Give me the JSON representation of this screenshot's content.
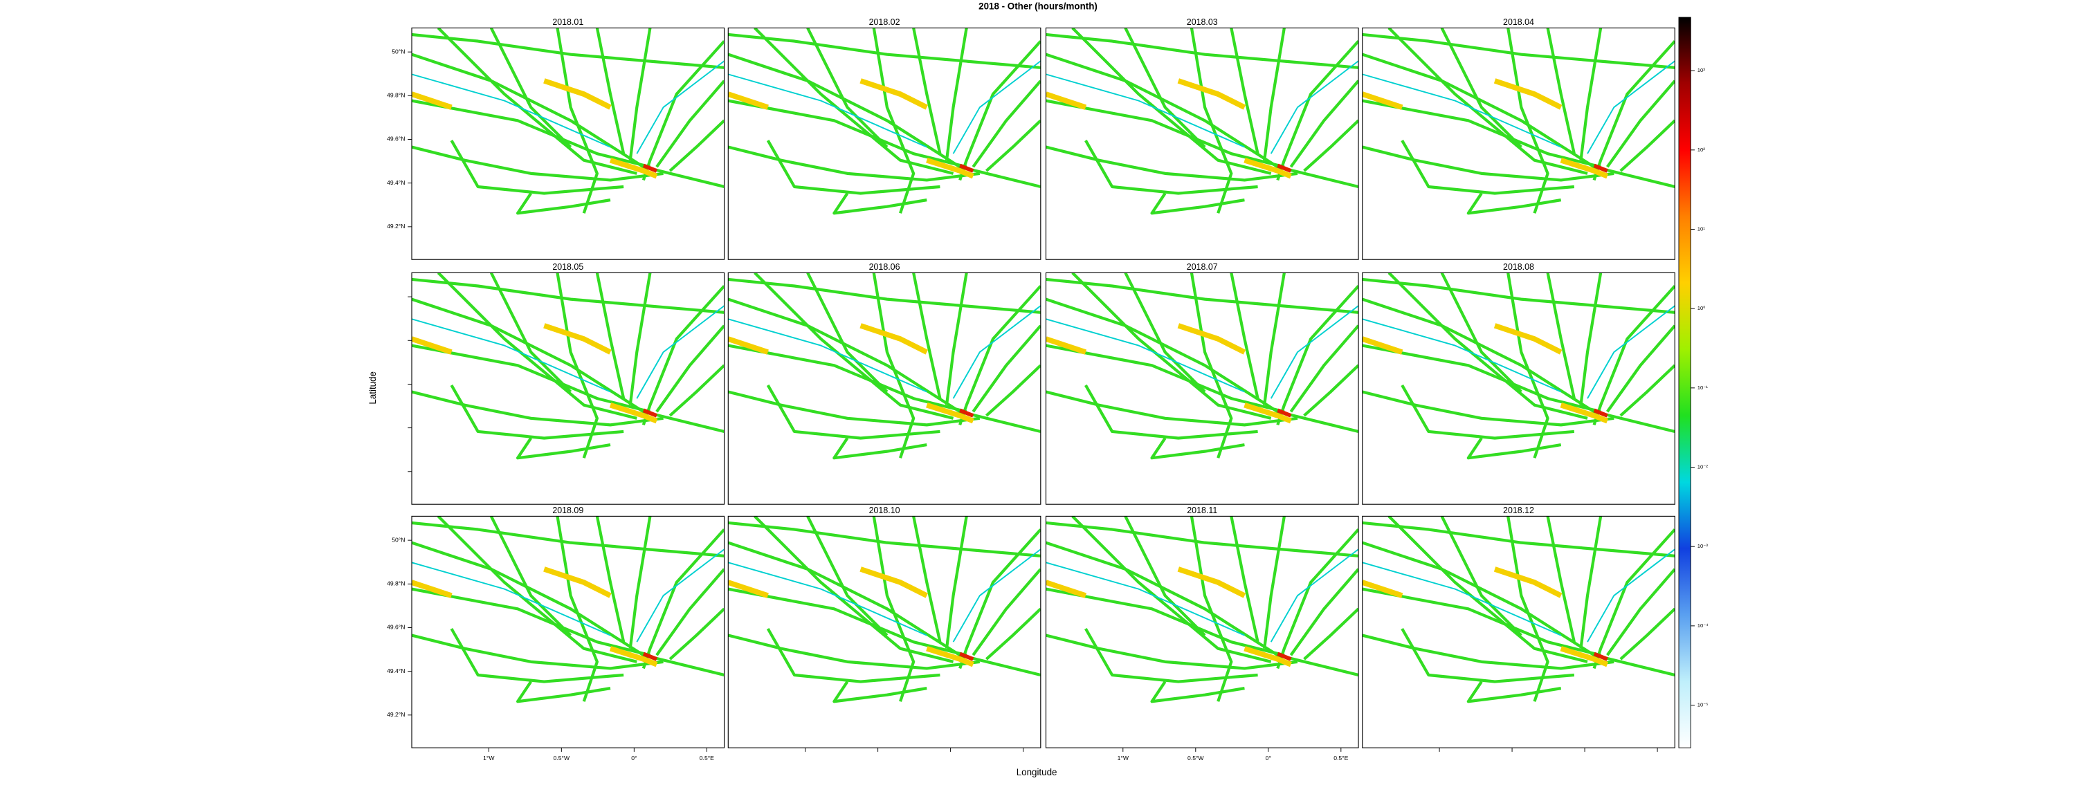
{
  "chart_data": {
    "type": "map",
    "title": "2018 - Other (hours/month)",
    "panels": [
      "2018.01",
      "2018.02",
      "2018.03",
      "2018.04",
      "2018.05",
      "2018.06",
      "2018.07",
      "2018.08",
      "2018.09",
      "2018.10",
      "2018.11",
      "2018.12"
    ],
    "xlabel": "Longitude",
    "ylabel": "Latitude",
    "xlim": [
      -1.53,
      0.62
    ],
    "ylim": [
      49.05,
      50.11
    ],
    "xticks": [
      {
        "value": -1,
        "label": "1°W"
      },
      {
        "value": -0.5,
        "label": "0.5°W"
      },
      {
        "value": 0,
        "label": "0°"
      },
      {
        "value": 0.5,
        "label": "0.5°E"
      }
    ],
    "yticks": [
      {
        "value": 49.2,
        "label": "49.2°N"
      },
      {
        "value": 49.4,
        "label": "49.4°N"
      },
      {
        "value": 49.6,
        "label": "49.6°N"
      },
      {
        "value": 49.8,
        "label": "49.8°N"
      },
      {
        "value": 50,
        "label": "50°N"
      }
    ],
    "colorbar": {
      "scale": "log",
      "lim": [
        2.9e-06,
        4700
      ],
      "ticks": [
        {
          "value": 1e-05,
          "label": "10⁻⁵"
        },
        {
          "value": 0.0001,
          "label": "10⁻⁴"
        },
        {
          "value": 0.001,
          "label": "10⁻³"
        },
        {
          "value": 0.01,
          "label": "10⁻²"
        },
        {
          "value": 0.1,
          "label": "10⁻¹"
        },
        {
          "value": 1,
          "label": "10⁰"
        },
        {
          "value": 10,
          "label": "10¹"
        },
        {
          "value": 100,
          "label": "10²"
        },
        {
          "value": 1000,
          "label": "10³"
        }
      ],
      "colors": [
        "#ffffff",
        "#bfeffb",
        "#5aa0f0",
        "#1040e0",
        "#00d8e0",
        "#20e020",
        "#a0f000",
        "#ffd000",
        "#ff8000",
        "#ff0000",
        "#a00000",
        "#000000"
      ]
    }
  }
}
